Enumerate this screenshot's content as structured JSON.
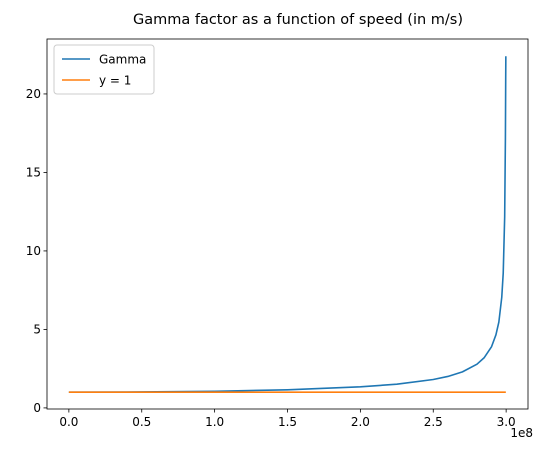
{
  "chart_data": {
    "type": "line",
    "title": "Gamma factor as a function of speed (in m/s)",
    "xlabel": "",
    "ylabel": "",
    "x_offset_label": "1e8",
    "xlim": [
      -0.15,
      3.15
    ],
    "ylim": [
      -0.07,
      23.5
    ],
    "x_ticks": [
      0.0,
      0.5,
      1.0,
      1.5,
      2.0,
      2.5,
      3.0
    ],
    "x_tick_labels": [
      "0.0",
      "0.5",
      "1.0",
      "1.5",
      "2.0",
      "2.5",
      "3.0"
    ],
    "y_ticks": [
      0,
      5,
      10,
      15,
      20
    ],
    "y_tick_labels": [
      "0",
      "5",
      "10",
      "15",
      "20"
    ],
    "grid": false,
    "legend_position": "top-left",
    "series": [
      {
        "name": "Gamma",
        "color": "#1f77b4",
        "x": [
          0.0,
          0.5,
          1.0,
          1.5,
          2.0,
          2.25,
          2.5,
          2.6,
          2.7,
          2.8,
          2.85,
          2.9,
          2.93,
          2.95,
          2.97,
          2.98,
          2.99,
          2.995,
          2.997,
          2.998
        ],
        "y": [
          1.0,
          1.014,
          1.061,
          1.155,
          1.342,
          1.51,
          1.809,
          2.003,
          2.294,
          2.784,
          3.204,
          3.902,
          4.655,
          5.469,
          7.046,
          8.58,
          12.18,
          17.2,
          21.0,
          22.4
        ]
      },
      {
        "name": "y = 1",
        "color": "#ff7f0e",
        "x": [
          0.0,
          2.998
        ],
        "y": [
          1,
          1
        ]
      }
    ]
  }
}
